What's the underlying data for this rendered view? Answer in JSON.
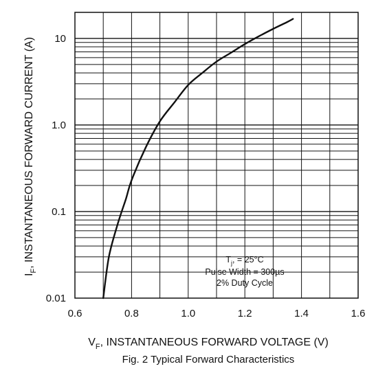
{
  "chart_data": {
    "type": "line",
    "xscale": "linear",
    "yscale": "log",
    "xlim": [
      0.6,
      1.6
    ],
    "ylim": [
      0.01,
      20
    ],
    "grid": true,
    "x_ticks": [
      "0.6",
      "0.8",
      "1.0",
      "1.2",
      "1.4",
      "1.6"
    ],
    "y_ticks": [
      "0.01",
      "0.1",
      "1.0",
      "10"
    ],
    "xlabel": {
      "symbol": "V",
      "subscript": "F",
      "rest": ", INSTANTANEOUS FORWARD VOLTAGE (V)"
    },
    "ylabel": {
      "symbol": "I",
      "subscript": "F",
      "rest": ", INSTANTANEOUS FORWARD CURRENT (A)"
    },
    "caption": "Fig. 2 Typical Forward Characteristics",
    "annotation": {
      "line1": {
        "symbol": "T",
        "subscript": "j",
        "rest": ", = 25°C"
      },
      "line2": "Pulse Width = 300µs",
      "line3": "2% Duty Cycle"
    },
    "series": [
      {
        "points": [
          [
            0.7,
            0.01
          ],
          [
            0.72,
            0.03
          ],
          [
            0.75,
            0.07
          ],
          [
            0.78,
            0.14
          ],
          [
            0.8,
            0.23
          ],
          [
            0.85,
            0.55
          ],
          [
            0.9,
            1.1
          ],
          [
            0.95,
            1.8
          ],
          [
            1.0,
            2.9
          ],
          [
            1.05,
            4.0
          ],
          [
            1.1,
            5.4
          ],
          [
            1.15,
            6.8
          ],
          [
            1.2,
            8.6
          ],
          [
            1.25,
            10.6
          ],
          [
            1.3,
            12.9
          ],
          [
            1.35,
            15.5
          ],
          [
            1.37,
            16.8
          ]
        ]
      }
    ],
    "line_color": "#111111"
  }
}
